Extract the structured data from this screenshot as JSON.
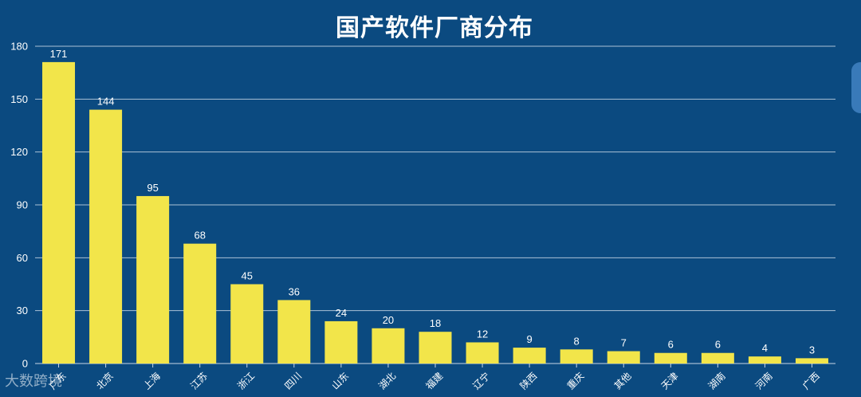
{
  "chart_data": {
    "type": "bar",
    "title": "国产软件厂商分布",
    "categories": [
      "广东",
      "北京",
      "上海",
      "江苏",
      "浙江",
      "四川",
      "山东",
      "湖北",
      "福建",
      "辽宁",
      "陕西",
      "重庆",
      "其他",
      "天津",
      "湖南",
      "河南",
      "广西"
    ],
    "values": [
      171,
      144,
      95,
      68,
      45,
      36,
      24,
      20,
      18,
      12,
      9,
      8,
      7,
      6,
      6,
      4,
      3
    ],
    "ylim": [
      0,
      180
    ],
    "yticks": [
      0,
      30,
      60,
      90,
      120,
      150,
      180
    ],
    "xlabel": "",
    "ylabel": "",
    "grid": true,
    "legend": "none",
    "bar_color": "#f2e54a",
    "background": "#0b4a80",
    "grid_color": "#c8d6e6"
  },
  "watermark": "大数跨境"
}
